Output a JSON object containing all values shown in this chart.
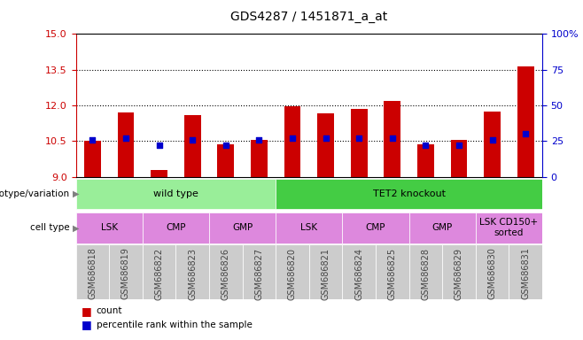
{
  "title": "GDS4287 / 1451871_a_at",
  "samples": [
    "GSM686818",
    "GSM686819",
    "GSM686822",
    "GSM686823",
    "GSM686826",
    "GSM686827",
    "GSM686820",
    "GSM686821",
    "GSM686824",
    "GSM686825",
    "GSM686828",
    "GSM686829",
    "GSM686830",
    "GSM686831"
  ],
  "bar_values": [
    10.5,
    11.7,
    9.3,
    11.6,
    10.35,
    10.55,
    11.95,
    11.65,
    11.85,
    12.2,
    10.35,
    10.55,
    11.75,
    13.65
  ],
  "percentile_values": [
    26,
    27,
    22,
    26,
    22,
    26,
    27,
    27,
    27,
    27,
    22,
    22,
    26,
    30
  ],
  "bar_color": "#cc0000",
  "percentile_color": "#0000cc",
  "ylim_left": [
    9,
    15
  ],
  "ylim_right": [
    0,
    100
  ],
  "yticks_left": [
    9,
    10.5,
    12,
    13.5,
    15
  ],
  "yticks_right": [
    0,
    25,
    50,
    75,
    100
  ],
  "hlines": [
    10.5,
    12.0,
    13.5
  ],
  "background_color": "#ffffff",
  "plot_bg": "#ffffff",
  "sample_bg": "#cccccc",
  "genotype_wt_color": "#99ee99",
  "genotype_ko_color": "#44cc44",
  "celltype_color": "#dd88dd",
  "legend_count_color": "#cc0000",
  "legend_pct_color": "#0000cc",
  "x_label_color": "#444444",
  "left_axis_color": "#cc0000",
  "right_axis_color": "#0000cc",
  "left_label": "genotype/variation",
  "cell_label": "cell type",
  "genotype_groups": [
    {
      "text": "wild type",
      "start": 0,
      "end": 5
    },
    {
      "text": "TET2 knockout",
      "start": 6,
      "end": 13
    }
  ],
  "celltype_groups": [
    {
      "text": "LSK",
      "start": 0,
      "end": 1
    },
    {
      "text": "CMP",
      "start": 2,
      "end": 3
    },
    {
      "text": "GMP",
      "start": 4,
      "end": 5
    },
    {
      "text": "LSK",
      "start": 6,
      "end": 7
    },
    {
      "text": "CMP",
      "start": 8,
      "end": 9
    },
    {
      "text": "GMP",
      "start": 10,
      "end": 11
    },
    {
      "text": "LSK CD150+\nsorted",
      "start": 12,
      "end": 13
    }
  ]
}
